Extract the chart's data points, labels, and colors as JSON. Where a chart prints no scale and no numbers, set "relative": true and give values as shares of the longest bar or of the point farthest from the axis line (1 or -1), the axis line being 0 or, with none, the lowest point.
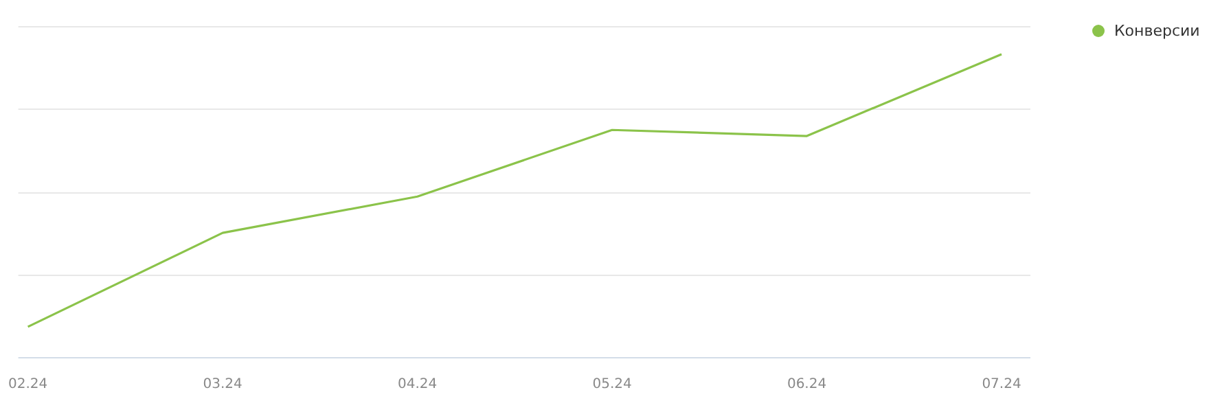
{
  "chart_data": {
    "type": "line",
    "relative": true,
    "categories": [
      "02.24",
      "03.24",
      "04.24",
      "05.24",
      "06.24",
      "07.24"
    ],
    "series": [
      {
        "name": "Конверсии",
        "color": "#8bc34a",
        "values": [
          0.1,
          0.41,
          0.53,
          0.75,
          0.73,
          1
        ]
      }
    ],
    "grid": "y",
    "legend": "top right",
    "marker": "none"
  }
}
